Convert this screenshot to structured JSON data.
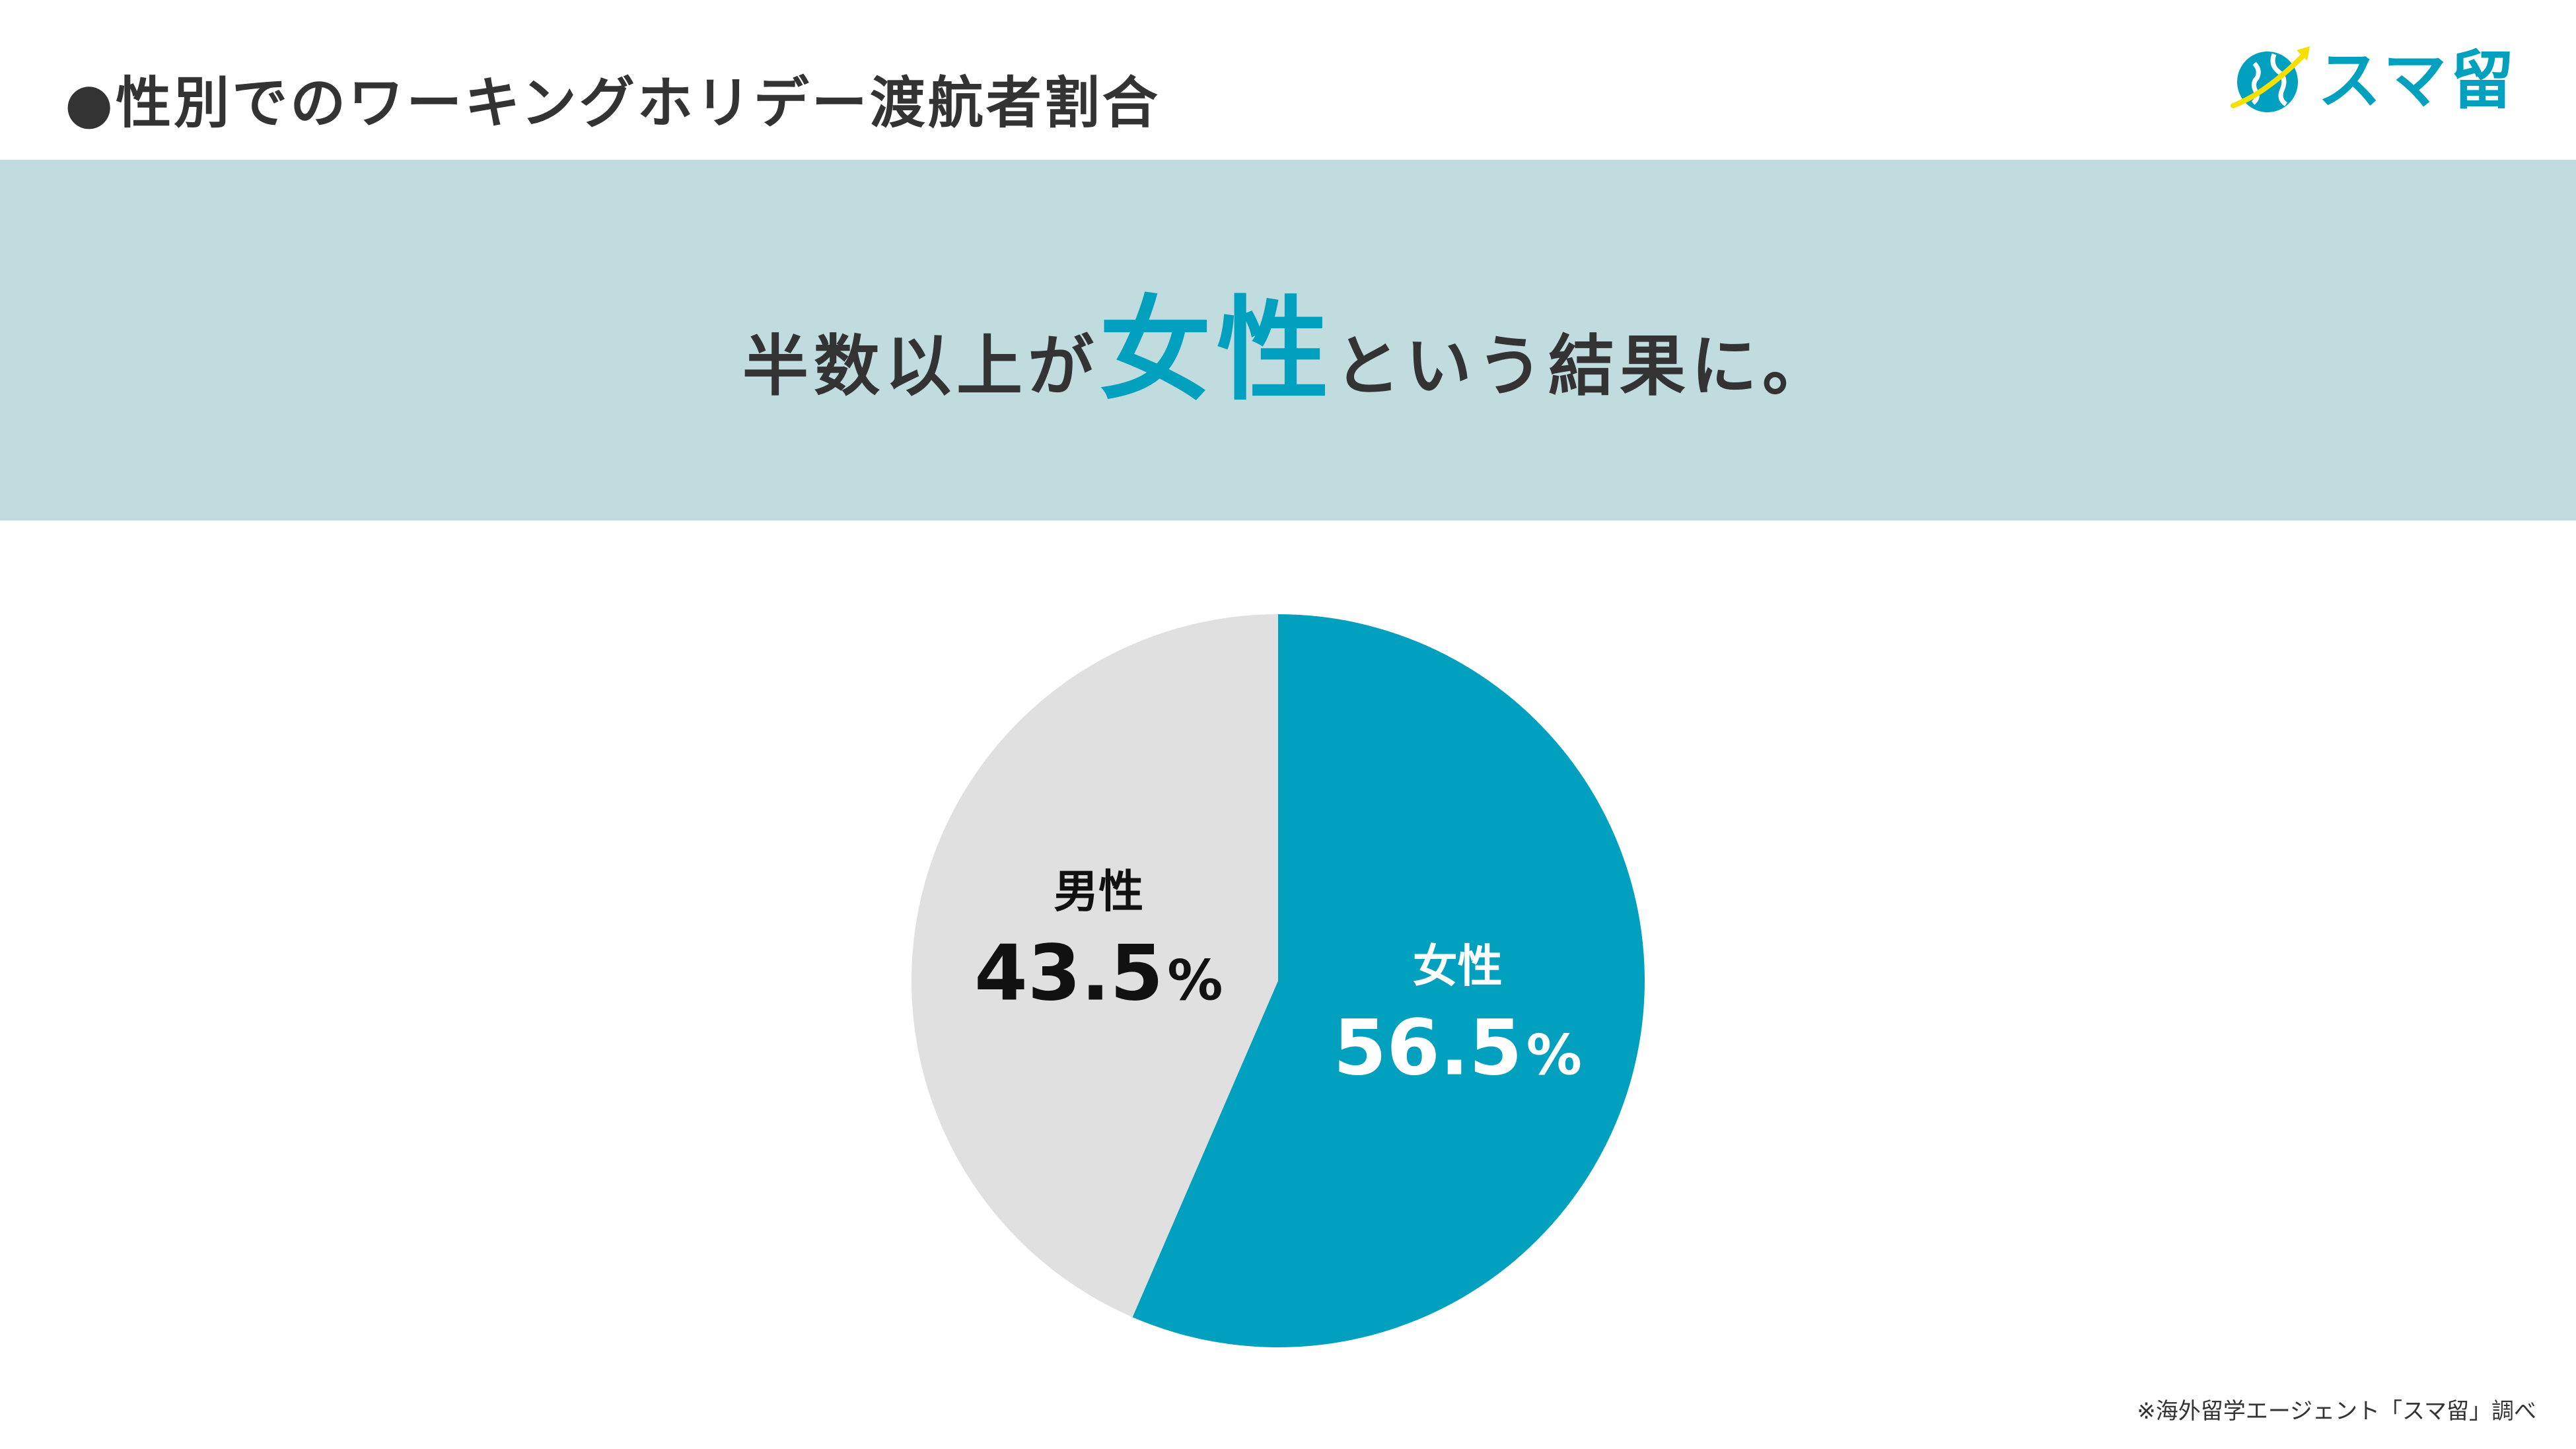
{
  "header": {
    "title": "●性別でのワーキングホリデー渡航者割合",
    "logo_text": "スマ留"
  },
  "banner": {
    "text_before": "半数以上が",
    "text_highlight": "女性",
    "text_after": "という結果に。"
  },
  "colors": {
    "accent": "#00a0be",
    "banner_bg": "#c1dcdf",
    "male_slice": "#e0e0e0",
    "text_dark": "#333333",
    "logo_yellow": "#f5e000"
  },
  "chart_data": {
    "type": "pie",
    "title": "",
    "slices": [
      {
        "label": "女性",
        "value": 56.5,
        "display": "56.5",
        "unit": "%",
        "color": "#00a0be",
        "label_color": "#ffffff"
      },
      {
        "label": "男性",
        "value": 43.5,
        "display": "43.5",
        "unit": "%",
        "color": "#e0e0e0",
        "label_color": "#111111"
      }
    ],
    "start_angle": "12 o'clock",
    "direction": "clockwise",
    "legend": "none"
  },
  "footer": {
    "note": "※海外留学エージェント「スマ留」調べ"
  }
}
